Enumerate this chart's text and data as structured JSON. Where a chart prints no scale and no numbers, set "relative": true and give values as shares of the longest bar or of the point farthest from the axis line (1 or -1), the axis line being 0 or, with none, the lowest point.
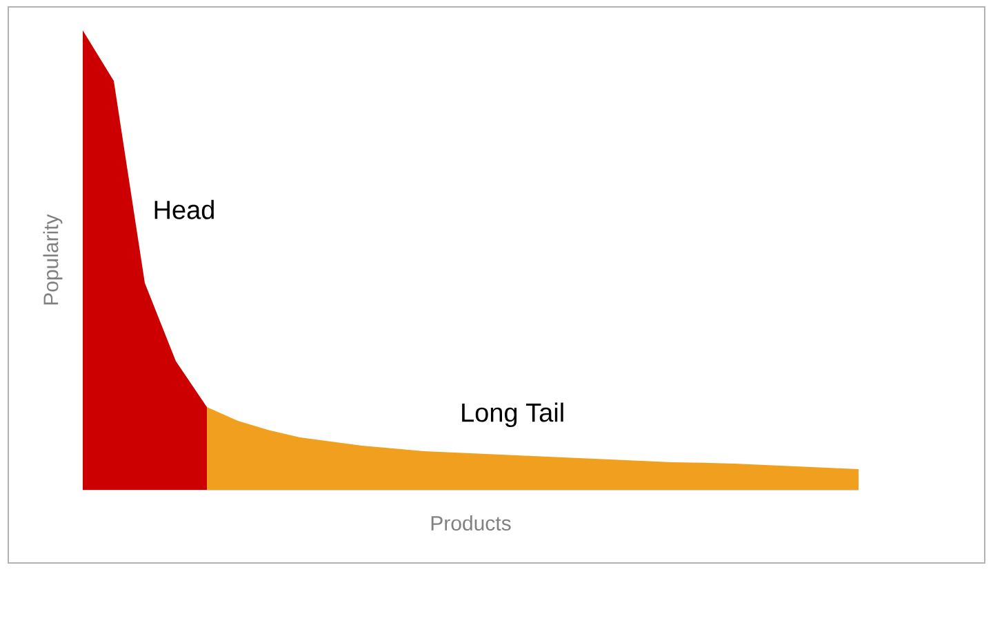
{
  "chart_data": {
    "type": "area",
    "relative": true,
    "xlabel": "Products",
    "ylabel": "Popularity",
    "legend": false,
    "categories": [
      null,
      null,
      null,
      null,
      null,
      null,
      null,
      null,
      null,
      null,
      null,
      null,
      null,
      null,
      null,
      null,
      null,
      null,
      null,
      null,
      null,
      null,
      null,
      null,
      null,
      null
    ],
    "series": [
      {
        "name": "Head",
        "color": "#cc0000",
        "values": [
          1.0,
          0.89,
          0.45,
          0.28,
          0.18,
          null,
          null,
          null,
          null,
          null,
          null,
          null,
          null,
          null,
          null,
          null,
          null,
          null,
          null,
          null,
          null,
          null,
          null,
          null,
          null,
          null
        ]
      },
      {
        "name": "Long Tail",
        "color": "#f0a01e",
        "values": [
          null,
          null,
          null,
          null,
          0.18,
          0.15,
          0.13,
          0.114,
          0.105,
          0.096,
          0.09,
          0.084,
          0.081,
          0.078,
          0.075,
          0.072,
          0.069,
          0.066,
          0.063,
          0.06,
          0.059,
          0.057,
          0.054,
          0.051,
          0.048,
          0.045
        ]
      }
    ]
  }
}
